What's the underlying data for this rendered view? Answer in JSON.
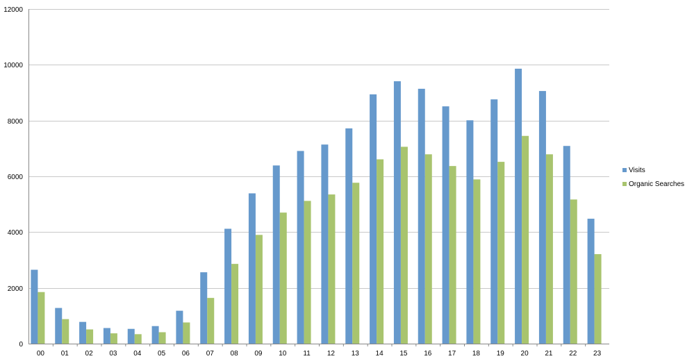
{
  "colors": {
    "visits": "#6699cc",
    "organic_searches": "#a8c46e",
    "grid": "#c8c8c8",
    "axis": "#888888"
  },
  "chart_data": {
    "type": "bar",
    "categories": [
      "00",
      "01",
      "02",
      "03",
      "04",
      "05",
      "06",
      "07",
      "08",
      "09",
      "10",
      "11",
      "12",
      "13",
      "14",
      "15",
      "16",
      "17",
      "18",
      "19",
      "20",
      "21",
      "22",
      "23"
    ],
    "series": [
      {
        "name": "Visits",
        "color": "#6699cc",
        "values": [
          2650,
          1280,
          780,
          560,
          530,
          630,
          1180,
          2560,
          4120,
          5390,
          6390,
          6910,
          7140,
          7720,
          8940,
          9410,
          9140,
          8510,
          8010,
          8760,
          9860,
          9060,
          7090,
          4480
        ]
      },
      {
        "name": "Organic Searches",
        "color": "#a8c46e",
        "values": [
          1850,
          880,
          510,
          370,
          340,
          410,
          760,
          1640,
          2860,
          3900,
          4700,
          5120,
          5350,
          5770,
          6610,
          7060,
          6790,
          6370,
          5890,
          6520,
          7450,
          6790,
          5170,
          3210
        ]
      }
    ],
    "ylim": [
      0,
      12000
    ],
    "yticks": [
      0,
      2000,
      4000,
      6000,
      8000,
      10000,
      12000
    ],
    "ytick_labels": [
      "0",
      "2000",
      "4000",
      "6000",
      "8000",
      "10000",
      "12000"
    ],
    "grid": true,
    "legend_position": "right"
  }
}
